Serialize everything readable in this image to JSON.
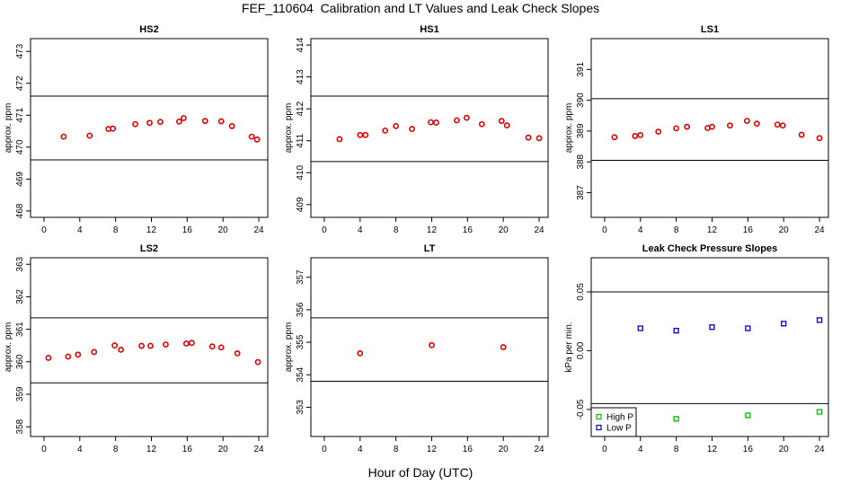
{
  "figure": {
    "title": "FEF_110604  Calibration and LT Values and Leak Check Slopes",
    "xlabel": "Hour of Day (UTC)"
  },
  "chart_data": [
    {
      "type": "scatter",
      "title": "HS2",
      "ylabel": "approx. ppm",
      "xlim": [
        -1.5,
        25
      ],
      "xticks": [
        0,
        4,
        8,
        12,
        16,
        20,
        24
      ],
      "ylim": [
        467.8,
        473.4
      ],
      "yticks": [
        468,
        469,
        470,
        471,
        472,
        473
      ],
      "hlines": [
        471.6,
        469.6
      ],
      "point_color": "#dd0000",
      "series": [
        {
          "x": [
            2.2,
            5.1,
            7.2,
            7.7,
            10.2,
            11.8,
            13.0,
            15.1,
            15.6,
            18.0,
            19.8,
            21.0,
            23.2,
            23.8
          ],
          "y": [
            470.33,
            470.36,
            470.57,
            470.58,
            470.72,
            470.76,
            470.79,
            470.8,
            470.91,
            470.82,
            470.81,
            470.66,
            470.33,
            470.24
          ]
        }
      ]
    },
    {
      "type": "scatter",
      "title": "HS1",
      "ylabel": "approx. ppm",
      "xlim": [
        -1.5,
        25
      ],
      "xticks": [
        0,
        4,
        8,
        12,
        16,
        20,
        24
      ],
      "ylim": [
        408.6,
        414.2
      ],
      "yticks": [
        409,
        410,
        411,
        412,
        413,
        414
      ],
      "hlines": [
        412.4,
        410.35
      ],
      "point_color": "#dd0000",
      "series": [
        {
          "x": [
            1.7,
            4.0,
            4.6,
            6.8,
            8.0,
            9.8,
            11.9,
            12.5,
            14.8,
            15.9,
            17.6,
            19.8,
            20.4,
            22.8,
            24.0
          ],
          "y": [
            411.05,
            411.18,
            411.18,
            411.32,
            411.46,
            411.37,
            411.58,
            411.57,
            411.64,
            411.72,
            411.52,
            411.62,
            411.48,
            411.1,
            411.08
          ]
        }
      ]
    },
    {
      "type": "scatter",
      "title": "LS1",
      "ylabel": "approx. ppm",
      "xlim": [
        -1.5,
        25
      ],
      "xticks": [
        0,
        4,
        8,
        12,
        16,
        20,
        24
      ],
      "ylim": [
        386.2,
        392.0
      ],
      "yticks": [
        387,
        388,
        389,
        390,
        391
      ],
      "hlines": [
        390.05,
        388.05
      ],
      "point_color": "#dd0000",
      "series": [
        {
          "x": [
            1.1,
            3.4,
            4.0,
            6.0,
            8.0,
            9.2,
            11.5,
            12.0,
            14.0,
            15.9,
            17.0,
            19.3,
            19.9,
            22.0,
            24.0
          ],
          "y": [
            388.8,
            388.84,
            388.87,
            388.98,
            389.09,
            389.14,
            389.1,
            389.14,
            389.18,
            389.33,
            389.24,
            389.21,
            389.18,
            388.88,
            388.77
          ]
        }
      ]
    },
    {
      "type": "scatter",
      "title": "LS2",
      "ylabel": "approx. ppm",
      "xlim": [
        -1.5,
        25
      ],
      "xticks": [
        0,
        4,
        8,
        12,
        16,
        20,
        24
      ],
      "ylim": [
        357.7,
        363.2
      ],
      "yticks": [
        358,
        359,
        360,
        361,
        362,
        363
      ],
      "hlines": [
        361.35,
        359.35
      ],
      "point_color": "#dd0000",
      "series": [
        {
          "x": [
            0.5,
            2.7,
            3.8,
            5.6,
            7.9,
            8.6,
            10.9,
            11.9,
            13.6,
            15.9,
            16.5,
            18.8,
            19.8,
            21.6,
            23.9
          ],
          "y": [
            360.12,
            360.16,
            360.22,
            360.3,
            360.5,
            360.37,
            360.49,
            360.49,
            360.53,
            360.56,
            360.58,
            360.47,
            360.44,
            360.26,
            359.99
          ]
        }
      ]
    },
    {
      "type": "scatter",
      "title": "LT",
      "ylabel": "approx. ppm",
      "xlim": [
        -1.5,
        25
      ],
      "xticks": [
        0,
        4,
        8,
        12,
        16,
        20,
        24
      ],
      "ylim": [
        352.1,
        357.6
      ],
      "yticks": [
        353,
        354,
        355,
        356,
        357
      ],
      "hlines": [
        355.75,
        353.8
      ],
      "point_color": "#dd0000",
      "series": [
        {
          "x": [
            4.0,
            12.0,
            20.0
          ],
          "y": [
            354.66,
            354.91,
            354.85
          ]
        }
      ]
    },
    {
      "type": "scatter",
      "title": "Leak Check Pressure Slopes",
      "ylabel": "kPa per min.",
      "xlim": [
        -1.5,
        25
      ],
      "xticks": [
        0,
        4,
        8,
        12,
        16,
        20,
        24
      ],
      "ylim": [
        -0.073,
        0.079
      ],
      "yticks": [
        -0.05,
        0.0,
        0.05
      ],
      "ytick_labels": [
        "-0.05",
        "0.00",
        "0.05"
      ],
      "hlines": [
        0.05,
        -0.045
      ],
      "legend": {
        "position": "bottom-left"
      },
      "series": [
        {
          "name": "High P",
          "color": "#00bb00",
          "marker": "square",
          "x": [
            8.0,
            16.0,
            24.0
          ],
          "y": [
            -0.058,
            -0.055,
            -0.052
          ]
        },
        {
          "name": "Low P",
          "color": "#0000cc",
          "marker": "square",
          "x": [
            4.0,
            8.0,
            12.0,
            16.0,
            20.0,
            24.0
          ],
          "y": [
            0.019,
            0.017,
            0.02,
            0.019,
            0.023,
            0.026
          ]
        }
      ]
    }
  ]
}
